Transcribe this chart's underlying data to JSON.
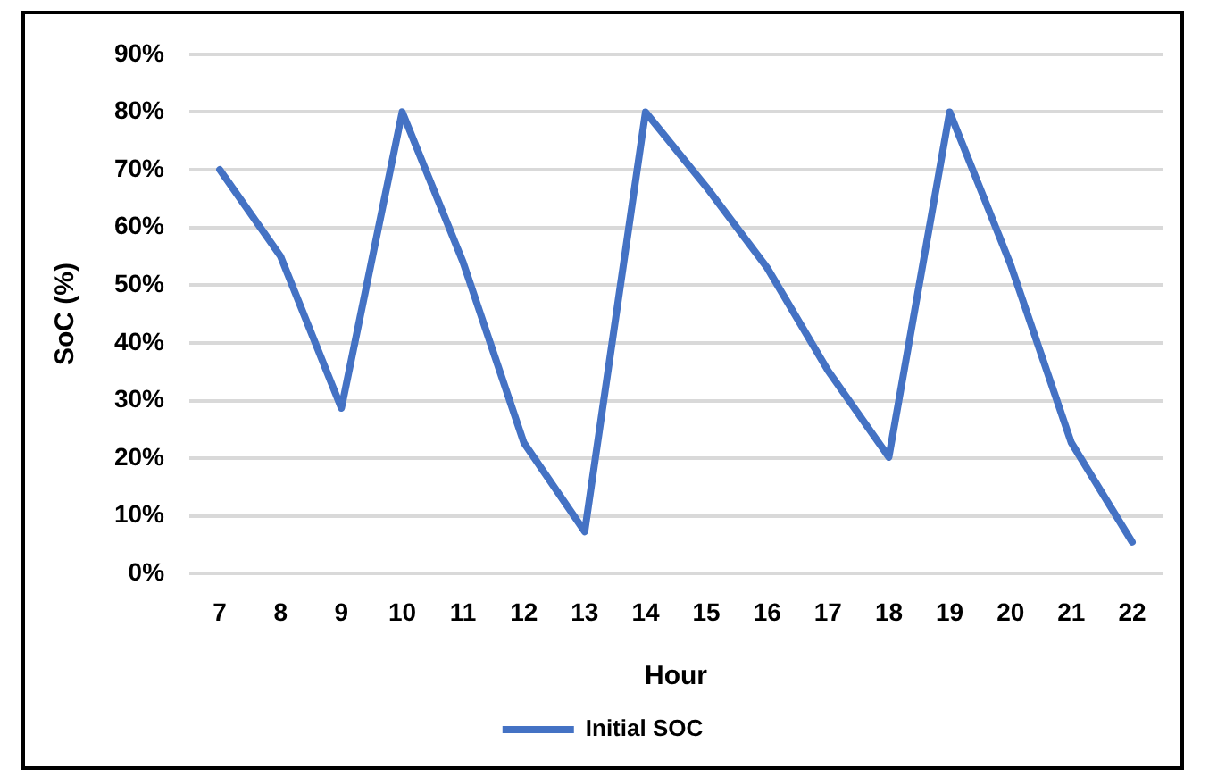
{
  "chart_data": {
    "type": "line",
    "xlabel": "Hour",
    "ylabel": "SoC (%)",
    "categories": [
      "7",
      "8",
      "9",
      "10",
      "11",
      "12",
      "13",
      "14",
      "15",
      "16",
      "17",
      "18",
      "19",
      "20",
      "21",
      "22"
    ],
    "series": [
      {
        "name": "Initial SOC",
        "color": "#4472c4",
        "values": [
          70,
          55,
          28.7,
          80,
          54,
          22.7,
          7.3,
          80,
          67,
          53,
          35.2,
          20.2,
          80,
          53.6,
          22.7,
          5.5
        ]
      }
    ],
    "ylim": [
      0,
      90
    ],
    "yticks": [
      {
        "value": 0,
        "label": "0%"
      },
      {
        "value": 10,
        "label": "10%"
      },
      {
        "value": 20,
        "label": "20%"
      },
      {
        "value": 30,
        "label": "30%"
      },
      {
        "value": 40,
        "label": "40%"
      },
      {
        "value": 50,
        "label": "50%"
      },
      {
        "value": 60,
        "label": "60%"
      },
      {
        "value": 70,
        "label": "70%"
      },
      {
        "value": 80,
        "label": "80%"
      },
      {
        "value": 90,
        "label": "90%"
      }
    ],
    "grid": "y",
    "legend": "bottom",
    "marker": "none",
    "line_style": "solid"
  }
}
